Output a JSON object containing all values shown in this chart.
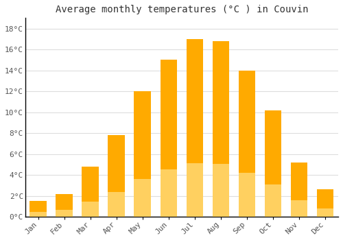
{
  "title": "Average monthly temperatures (°C ) in Couvin",
  "months": [
    "Jan",
    "Feb",
    "Mar",
    "Apr",
    "May",
    "Jun",
    "Jul",
    "Aug",
    "Sep",
    "Oct",
    "Nov",
    "Dec"
  ],
  "values": [
    1.5,
    2.2,
    4.8,
    7.8,
    12.0,
    15.0,
    17.0,
    16.8,
    14.0,
    10.2,
    5.2,
    2.6
  ],
  "bar_color": "#FFAA00",
  "bar_color_light": "#FFD060",
  "background_color": "#ffffff",
  "plot_bg_color": "#ffffff",
  "grid_color": "#dddddd",
  "ylim": [
    0,
    19
  ],
  "yticks": [
    0,
    2,
    4,
    6,
    8,
    10,
    12,
    14,
    16,
    18
  ],
  "ytick_labels": [
    "0°C",
    "2°C",
    "4°C",
    "6°C",
    "8°C",
    "10°C",
    "12°C",
    "14°C",
    "16°C",
    "18°C"
  ],
  "title_fontsize": 10,
  "tick_fontsize": 8,
  "fig_width": 5.0,
  "fig_height": 3.5,
  "dpi": 100
}
